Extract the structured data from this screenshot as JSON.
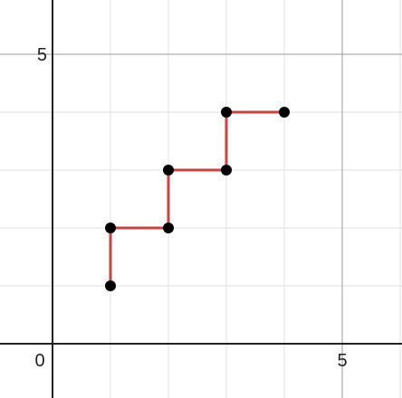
{
  "chart_data": {
    "type": "line",
    "title": "",
    "xlabel": "",
    "ylabel": "",
    "xlim": [
      -0.9,
      6.0
    ],
    "ylim": [
      -0.9,
      6.0
    ],
    "grid": true,
    "minor_grid_step": 1,
    "major_grid_step": 5,
    "x_ticks": [
      5
    ],
    "y_ticks": [
      5
    ],
    "origin_label": "0",
    "x_tick_labels": [
      "5"
    ],
    "y_tick_labels": [
      "5"
    ],
    "series": [
      {
        "x": [
          1,
          1,
          2,
          2,
          3,
          3,
          4
        ],
        "y": [
          1,
          2,
          2,
          3,
          3,
          4,
          4
        ],
        "line_color": "#c74440",
        "point_color": "#000000"
      }
    ]
  }
}
